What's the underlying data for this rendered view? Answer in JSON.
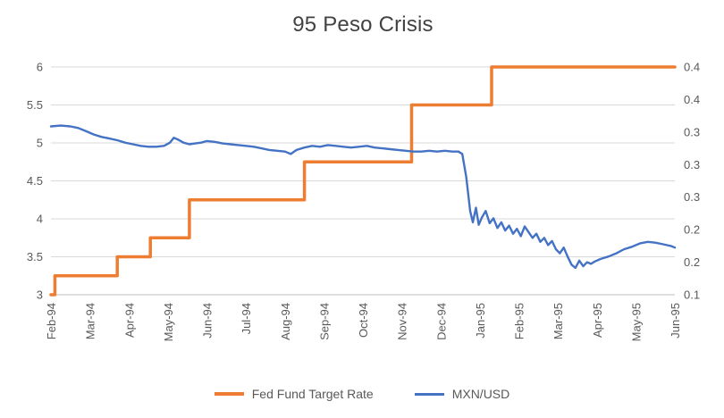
{
  "title": "95 Peso Crisis",
  "colors": {
    "fed_line": "#ED7D31",
    "mxn_line": "#4472C4",
    "gridline": "#D9D9D9",
    "axis_line": "#BFBFBF",
    "text": "#595959"
  },
  "chart_data": {
    "type": "line",
    "title": "95 Peso Crisis",
    "x_categories": [
      "Feb-94",
      "Mar-94",
      "Apr-94",
      "May-94",
      "Jun-94",
      "Jul-94",
      "Aug-94",
      "Sep-94",
      "Oct-94",
      "Nov-94",
      "Dec-94",
      "Jan-95",
      "Feb-95",
      "Mar-95",
      "Apr-95",
      "May-95",
      "Jun-95"
    ],
    "left_axis": {
      "range": [
        3,
        6
      ],
      "ticks": [
        {
          "label": "6",
          "value": 6
        },
        {
          "label": "5.5",
          "value": 5.5
        },
        {
          "label": "5",
          "value": 5
        },
        {
          "label": "4.5",
          "value": 4.5
        },
        {
          "label": "4",
          "value": 4
        },
        {
          "label": "3.5",
          "value": 3.5
        },
        {
          "label": "3",
          "value": 3
        }
      ]
    },
    "right_axis": {
      "range": [
        0.14,
        0.42
      ],
      "ticks": [
        {
          "label": "0.4",
          "value": 0.42
        },
        {
          "label": "0.4",
          "value": 0.38
        },
        {
          "label": "0.3",
          "value": 0.34
        },
        {
          "label": "0.3",
          "value": 0.3
        },
        {
          "label": "0.3",
          "value": 0.26
        },
        {
          "label": "0.2",
          "value": 0.22
        },
        {
          "label": "0.2",
          "value": 0.18
        },
        {
          "label": "0.1",
          "value": 0.14
        }
      ]
    },
    "legend_position": "bottom",
    "grid": "horizontal-only",
    "series": [
      {
        "name": "Fed Fund Target Rate",
        "axis": "left",
        "color": "#ED7D31",
        "stroke_width": 3.5,
        "points": [
          [
            0,
            3.0
          ],
          [
            0.1,
            3.0
          ],
          [
            0.1,
            3.25
          ],
          [
            1.7,
            3.25
          ],
          [
            1.7,
            3.5
          ],
          [
            2.55,
            3.5
          ],
          [
            2.55,
            3.75
          ],
          [
            3.55,
            3.75
          ],
          [
            3.55,
            4.25
          ],
          [
            6.5,
            4.25
          ],
          [
            6.5,
            4.75
          ],
          [
            9.25,
            4.75
          ],
          [
            9.25,
            5.5
          ],
          [
            11.3,
            5.5
          ],
          [
            11.3,
            6.0
          ],
          [
            16,
            6.0
          ]
        ]
      },
      {
        "name": "MXN/USD",
        "axis": "right",
        "color": "#4472C4",
        "stroke_width": 2.4,
        "points": [
          [
            0,
            0.347
          ],
          [
            0.25,
            0.348
          ],
          [
            0.5,
            0.347
          ],
          [
            0.7,
            0.345
          ],
          [
            0.9,
            0.341
          ],
          [
            1.1,
            0.337
          ],
          [
            1.3,
            0.334
          ],
          [
            1.5,
            0.332
          ],
          [
            1.7,
            0.33
          ],
          [
            1.9,
            0.327
          ],
          [
            2.1,
            0.325
          ],
          [
            2.3,
            0.323
          ],
          [
            2.5,
            0.322
          ],
          [
            2.7,
            0.322
          ],
          [
            2.9,
            0.323
          ],
          [
            3.05,
            0.327
          ],
          [
            3.15,
            0.333
          ],
          [
            3.25,
            0.331
          ],
          [
            3.4,
            0.327
          ],
          [
            3.55,
            0.325
          ],
          [
            3.7,
            0.326
          ],
          [
            3.85,
            0.327
          ],
          [
            4.0,
            0.329
          ],
          [
            4.2,
            0.328
          ],
          [
            4.4,
            0.326
          ],
          [
            4.6,
            0.325
          ],
          [
            4.8,
            0.324
          ],
          [
            5.0,
            0.323
          ],
          [
            5.2,
            0.322
          ],
          [
            5.4,
            0.32
          ],
          [
            5.6,
            0.318
          ],
          [
            5.8,
            0.317
          ],
          [
            6.0,
            0.316
          ],
          [
            6.15,
            0.313
          ],
          [
            6.3,
            0.318
          ],
          [
            6.5,
            0.321
          ],
          [
            6.7,
            0.323
          ],
          [
            6.9,
            0.322
          ],
          [
            7.1,
            0.324
          ],
          [
            7.3,
            0.323
          ],
          [
            7.5,
            0.322
          ],
          [
            7.7,
            0.321
          ],
          [
            7.9,
            0.322
          ],
          [
            8.1,
            0.323
          ],
          [
            8.3,
            0.321
          ],
          [
            8.5,
            0.32
          ],
          [
            8.7,
            0.319
          ],
          [
            8.9,
            0.318
          ],
          [
            9.1,
            0.317
          ],
          [
            9.3,
            0.316
          ],
          [
            9.5,
            0.316
          ],
          [
            9.7,
            0.317
          ],
          [
            9.9,
            0.316
          ],
          [
            10.1,
            0.317
          ],
          [
            10.3,
            0.316
          ],
          [
            10.45,
            0.316
          ],
          [
            10.55,
            0.313
          ],
          [
            10.65,
            0.285
          ],
          [
            10.75,
            0.243
          ],
          [
            10.82,
            0.229
          ],
          [
            10.9,
            0.247
          ],
          [
            10.97,
            0.226
          ],
          [
            11.05,
            0.235
          ],
          [
            11.15,
            0.243
          ],
          [
            11.25,
            0.228
          ],
          [
            11.35,
            0.234
          ],
          [
            11.45,
            0.222
          ],
          [
            11.55,
            0.229
          ],
          [
            11.65,
            0.219
          ],
          [
            11.75,
            0.225
          ],
          [
            11.85,
            0.215
          ],
          [
            11.95,
            0.221
          ],
          [
            12.05,
            0.212
          ],
          [
            12.15,
            0.224
          ],
          [
            12.25,
            0.217
          ],
          [
            12.35,
            0.21
          ],
          [
            12.45,
            0.215
          ],
          [
            12.55,
            0.205
          ],
          [
            12.65,
            0.21
          ],
          [
            12.75,
            0.201
          ],
          [
            12.85,
            0.206
          ],
          [
            12.95,
            0.196
          ],
          [
            13.05,
            0.191
          ],
          [
            13.15,
            0.198
          ],
          [
            13.25,
            0.187
          ],
          [
            13.35,
            0.177
          ],
          [
            13.45,
            0.173
          ],
          [
            13.55,
            0.182
          ],
          [
            13.65,
            0.175
          ],
          [
            13.75,
            0.18
          ],
          [
            13.85,
            0.178
          ],
          [
            13.95,
            0.181
          ],
          [
            14.1,
            0.184
          ],
          [
            14.3,
            0.187
          ],
          [
            14.5,
            0.191
          ],
          [
            14.7,
            0.196
          ],
          [
            14.9,
            0.199
          ],
          [
            15.1,
            0.203
          ],
          [
            15.3,
            0.205
          ],
          [
            15.5,
            0.204
          ],
          [
            15.7,
            0.202
          ],
          [
            15.9,
            0.2
          ],
          [
            16,
            0.198
          ]
        ]
      }
    ]
  }
}
